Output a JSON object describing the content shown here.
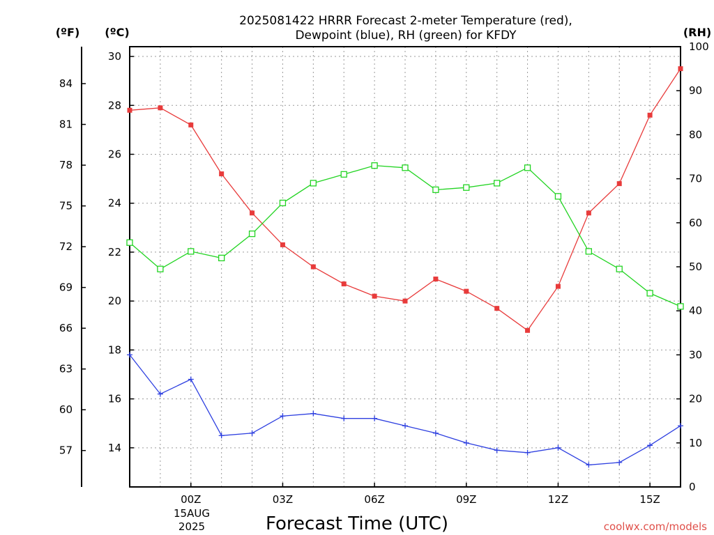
{
  "chart_data": {
    "type": "line",
    "title_line1": "2025081422 HRRR Forecast 2-meter Temperature (red),",
    "title_line2": "Dewpoint (blue), RH (green) for KFDY",
    "xlabel": "Forecast Time (UTC)",
    "left_axis_f_label": "(ºF)",
    "left_axis_c_label": "(ºC)",
    "right_axis_label": "(RH)",
    "credit": "coolwx.com/models",
    "x_hours": [
      -2,
      -1,
      0,
      1,
      2,
      3,
      4,
      5,
      6,
      7,
      8,
      9,
      10,
      11,
      12,
      13,
      14,
      15,
      16
    ],
    "xlim": [
      -2,
      16
    ],
    "x_ticks": [
      {
        "hour": 0,
        "label": "00Z"
      },
      {
        "hour": 3,
        "label": "03Z"
      },
      {
        "hour": 6,
        "label": "06Z"
      },
      {
        "hour": 9,
        "label": "09Z"
      },
      {
        "hour": 12,
        "label": "12Z"
      },
      {
        "hour": 15,
        "label": "15Z"
      }
    ],
    "date_label_line1": "15AUG",
    "date_label_line2": "2025",
    "celsius_lim": [
      12.4,
      30.4
    ],
    "celsius_ticks": [
      "14",
      "16",
      "18",
      "20",
      "22",
      "24",
      "26",
      "28",
      "30"
    ],
    "fahrenheit_ticks": [
      "57",
      "60",
      "63",
      "66",
      "69",
      "72",
      "75",
      "78",
      "81",
      "84"
    ],
    "rh_lim": [
      0,
      100
    ],
    "rh_ticks": [
      "0",
      "10",
      "20",
      "30",
      "40",
      "50",
      "60",
      "70",
      "80",
      "90",
      "100"
    ],
    "grid": true,
    "series": [
      {
        "name": "Temperature",
        "unit": "C",
        "color": "#e83b3b",
        "marker": "filled-square",
        "values": [
          27.8,
          27.9,
          27.2,
          25.2,
          23.6,
          22.3,
          21.4,
          20.7,
          20.2,
          20.0,
          20.9,
          20.4,
          19.7,
          18.8,
          20.6,
          23.6,
          24.8,
          27.6,
          29.5
        ]
      },
      {
        "name": "Dewpoint",
        "unit": "C",
        "color": "#2d3fe0",
        "marker": "plus",
        "values": [
          17.8,
          16.2,
          16.8,
          14.5,
          14.6,
          15.3,
          15.4,
          15.2,
          15.2,
          14.9,
          14.6,
          14.2,
          13.9,
          13.8,
          14.0,
          13.3,
          13.4,
          14.1,
          14.9
        ]
      },
      {
        "name": "RH",
        "unit": "%",
        "color": "#22d422",
        "marker": "open-square",
        "values": [
          55.5,
          49.5,
          53.5,
          52.0,
          57.5,
          64.5,
          69.0,
          71.0,
          73.0,
          72.5,
          67.5,
          68.0,
          69.0,
          72.5,
          66.0,
          53.5,
          49.5,
          44.0,
          41.0
        ]
      }
    ]
  }
}
